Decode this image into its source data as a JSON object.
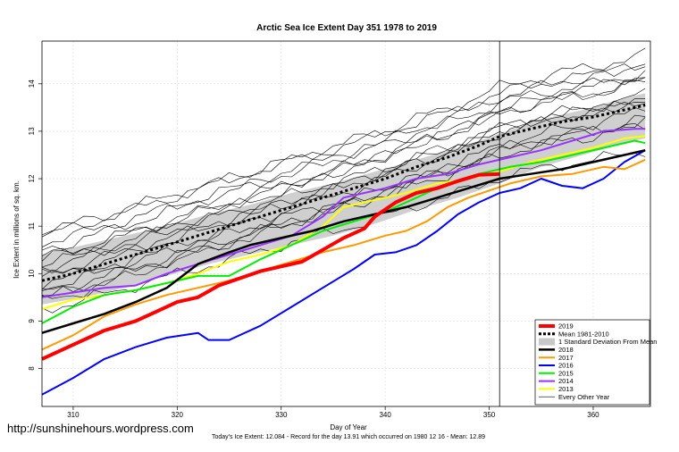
{
  "chart_data": {
    "type": "line",
    "title": "Arctic Sea Ice Extent Day 351 1978 to 2019",
    "xlabel": "Day of Year",
    "ylabel": "Ice Extent in millions of sq. km.",
    "xlim": [
      307,
      365.5
    ],
    "ylim": [
      7.2,
      14.9
    ],
    "x_ticks": [
      310,
      320,
      330,
      340,
      350,
      360
    ],
    "y_ticks": [
      8,
      9,
      10,
      11,
      12,
      13,
      14
    ],
    "grid": true,
    "marker_day": 351,
    "legend_position": "bottom-right",
    "footer": "Today's Ice Extent: 12.084  - Record for the day  13.91 which occurred on 1980 12 16  - Mean: 12.89",
    "watermark": "http://sunshinehours.wordpress.com",
    "legend": [
      {
        "label": "2019",
        "color": "#ff0000",
        "style": "solid",
        "width": 4
      },
      {
        "label": "Mean 1981-2010",
        "color": "#000000",
        "style": "dashed",
        "width": 3
      },
      {
        "label": "1 Standard Deviation From Mean",
        "color": "#c8c8c8",
        "style": "band",
        "width": 8
      },
      {
        "label": "2018",
        "color": "#000000",
        "style": "solid",
        "width": 2.5
      },
      {
        "label": "2017",
        "color": "#ff9900",
        "style": "solid",
        "width": 2
      },
      {
        "label": "2016",
        "color": "#0000ff",
        "style": "solid",
        "width": 2
      },
      {
        "label": "2015",
        "color": "#00ee00",
        "style": "solid",
        "width": 2
      },
      {
        "label": "2014",
        "color": "#9933ff",
        "style": "solid",
        "width": 2
      },
      {
        "label": "2013",
        "color": "#ffff00",
        "style": "solid",
        "width": 2
      },
      {
        "label": "Every Other Year",
        "color": "#000000",
        "style": "solid",
        "width": 0.7
      }
    ],
    "series": [
      {
        "name": "2019",
        "color": "#ff0000",
        "width": 4,
        "points": [
          [
            307,
            8.2
          ],
          [
            310,
            8.5
          ],
          [
            313,
            8.8
          ],
          [
            316,
            9.0
          ],
          [
            318,
            9.2
          ],
          [
            320,
            9.4
          ],
          [
            322,
            9.5
          ],
          [
            324,
            9.75
          ],
          [
            326,
            9.9
          ],
          [
            328,
            10.05
          ],
          [
            330,
            10.15
          ],
          [
            332,
            10.25
          ],
          [
            334,
            10.5
          ],
          [
            336,
            10.75
          ],
          [
            338,
            10.95
          ],
          [
            339,
            11.2
          ],
          [
            341,
            11.5
          ],
          [
            343,
            11.7
          ],
          [
            345,
            11.8
          ],
          [
            347,
            11.95
          ],
          [
            349,
            12.08
          ],
          [
            351,
            12.1
          ]
        ]
      },
      {
        "name": "Mean 1981-2010",
        "color": "#000000",
        "width": 3,
        "dashed": true,
        "points": [
          [
            307,
            9.85
          ],
          [
            310,
            10.0
          ],
          [
            313,
            10.2
          ],
          [
            316,
            10.4
          ],
          [
            319,
            10.6
          ],
          [
            322,
            10.8
          ],
          [
            325,
            11.0
          ],
          [
            328,
            11.2
          ],
          [
            331,
            11.4
          ],
          [
            334,
            11.6
          ],
          [
            337,
            11.8
          ],
          [
            340,
            12.0
          ],
          [
            343,
            12.25
          ],
          [
            346,
            12.45
          ],
          [
            349,
            12.7
          ],
          [
            351,
            12.89
          ],
          [
            354,
            13.05
          ],
          [
            357,
            13.2
          ],
          [
            360,
            13.3
          ],
          [
            363,
            13.45
          ],
          [
            365,
            13.55
          ]
        ]
      },
      {
        "name": "2018",
        "color": "#000000",
        "width": 2.5,
        "points": [
          [
            307,
            8.75
          ],
          [
            310,
            8.95
          ],
          [
            313,
            9.15
          ],
          [
            316,
            9.4
          ],
          [
            319,
            9.7
          ],
          [
            322,
            10.2
          ],
          [
            325,
            10.45
          ],
          [
            327,
            10.6
          ],
          [
            330,
            10.75
          ],
          [
            333,
            10.9
          ],
          [
            336,
            11.1
          ],
          [
            339,
            11.25
          ],
          [
            342,
            11.4
          ],
          [
            345,
            11.6
          ],
          [
            348,
            11.8
          ],
          [
            351,
            12.0
          ],
          [
            354,
            12.1
          ],
          [
            357,
            12.2
          ],
          [
            360,
            12.35
          ],
          [
            363,
            12.5
          ],
          [
            365,
            12.6
          ]
        ]
      },
      {
        "name": "2017",
        "color": "#ff9900",
        "width": 2,
        "points": [
          [
            307,
            8.4
          ],
          [
            310,
            8.7
          ],
          [
            313,
            9.1
          ],
          [
            316,
            9.35
          ],
          [
            319,
            9.55
          ],
          [
            322,
            9.7
          ],
          [
            325,
            9.85
          ],
          [
            328,
            10.05
          ],
          [
            331,
            10.25
          ],
          [
            334,
            10.45
          ],
          [
            337,
            10.6
          ],
          [
            340,
            10.8
          ],
          [
            342,
            10.9
          ],
          [
            344,
            11.1
          ],
          [
            346,
            11.4
          ],
          [
            348,
            11.6
          ],
          [
            350,
            11.75
          ],
          [
            352,
            11.9
          ],
          [
            355,
            12.05
          ],
          [
            358,
            12.1
          ],
          [
            361,
            12.25
          ],
          [
            363,
            12.2
          ],
          [
            365,
            12.4
          ]
        ]
      },
      {
        "name": "2016",
        "color": "#0000ff",
        "width": 2,
        "points": [
          [
            307,
            7.45
          ],
          [
            310,
            7.8
          ],
          [
            313,
            8.2
          ],
          [
            316,
            8.45
          ],
          [
            319,
            8.65
          ],
          [
            322,
            8.75
          ],
          [
            323,
            8.6
          ],
          [
            325,
            8.6
          ],
          [
            328,
            8.9
          ],
          [
            331,
            9.3
          ],
          [
            334,
            9.7
          ],
          [
            337,
            10.1
          ],
          [
            339,
            10.4
          ],
          [
            341,
            10.45
          ],
          [
            343,
            10.6
          ],
          [
            345,
            10.9
          ],
          [
            347,
            11.25
          ],
          [
            349,
            11.5
          ],
          [
            351,
            11.7
          ],
          [
            353,
            11.8
          ],
          [
            355,
            12.0
          ],
          [
            357,
            11.85
          ],
          [
            359,
            11.8
          ],
          [
            361,
            12.0
          ],
          [
            363,
            12.35
          ],
          [
            365,
            12.6
          ]
        ]
      },
      {
        "name": "2015",
        "color": "#00ee00",
        "width": 2,
        "points": [
          [
            307,
            8.95
          ],
          [
            310,
            9.3
          ],
          [
            313,
            9.55
          ],
          [
            316,
            9.65
          ],
          [
            319,
            9.8
          ],
          [
            322,
            9.95
          ],
          [
            325,
            9.95
          ],
          [
            328,
            10.3
          ],
          [
            331,
            10.6
          ],
          [
            334,
            10.9
          ],
          [
            337,
            11.1
          ],
          [
            340,
            11.3
          ],
          [
            343,
            11.6
          ],
          [
            346,
            11.9
          ],
          [
            349,
            12.1
          ],
          [
            352,
            12.25
          ],
          [
            355,
            12.35
          ],
          [
            358,
            12.5
          ],
          [
            361,
            12.65
          ],
          [
            364,
            12.8
          ],
          [
            365,
            12.75
          ]
        ]
      },
      {
        "name": "2014",
        "color": "#9933ff",
        "width": 2,
        "points": [
          [
            307,
            9.5
          ],
          [
            310,
            9.6
          ],
          [
            313,
            9.7
          ],
          [
            316,
            9.75
          ],
          [
            319,
            10.0
          ],
          [
            322,
            10.2
          ],
          [
            325,
            10.4
          ],
          [
            328,
            10.6
          ],
          [
            331,
            10.8
          ],
          [
            334,
            11.2
          ],
          [
            336,
            11.6
          ],
          [
            338,
            11.7
          ],
          [
            340,
            11.8
          ],
          [
            343,
            12.0
          ],
          [
            346,
            12.1
          ],
          [
            349,
            12.3
          ],
          [
            352,
            12.45
          ],
          [
            355,
            12.6
          ],
          [
            358,
            12.8
          ],
          [
            361,
            13.0
          ],
          [
            364,
            13.05
          ],
          [
            365,
            13.05
          ]
        ]
      },
      {
        "name": "2013",
        "color": "#ffff00",
        "width": 2,
        "points": [
          [
            307,
            9.25
          ],
          [
            310,
            9.45
          ],
          [
            313,
            9.55
          ],
          [
            316,
            9.65
          ],
          [
            319,
            9.8
          ],
          [
            322,
            10.0
          ],
          [
            325,
            10.25
          ],
          [
            328,
            10.4
          ],
          [
            331,
            10.6
          ],
          [
            334,
            11.0
          ],
          [
            336,
            11.4
          ],
          [
            339,
            11.55
          ],
          [
            342,
            11.7
          ],
          [
            345,
            11.9
          ],
          [
            348,
            12.0
          ],
          [
            351,
            12.15
          ],
          [
            354,
            12.35
          ],
          [
            357,
            12.5
          ],
          [
            360,
            12.65
          ],
          [
            363,
            12.85
          ],
          [
            365,
            12.9
          ]
        ]
      }
    ],
    "std_band": {
      "x": [
        307,
        311,
        315,
        319,
        323,
        327,
        331,
        335,
        339,
        343,
        347,
        351,
        355,
        359,
        363,
        365
      ],
      "upper": [
        10.4,
        10.6,
        10.8,
        11.0,
        11.25,
        11.45,
        11.7,
        11.9,
        12.15,
        12.4,
        12.65,
        12.95,
        13.25,
        13.45,
        13.7,
        13.8
      ],
      "lower": [
        9.35,
        9.5,
        9.7,
        9.95,
        10.2,
        10.4,
        10.6,
        10.8,
        11.05,
        11.35,
        11.6,
        11.9,
        12.25,
        12.5,
        12.75,
        12.85
      ]
    },
    "other_years": {
      "offsets": [
        -0.35,
        -0.25,
        -0.15,
        -0.05,
        0.05,
        0.15,
        0.25,
        0.35,
        0.5,
        0.65,
        0.8,
        0.95,
        -0.45,
        -0.6,
        1.05,
        0.45
      ],
      "slopes": [
        0.064,
        0.06,
        0.068,
        0.058,
        0.066,
        0.062,
        0.07,
        0.059,
        0.063,
        0.067,
        0.061,
        0.065,
        0.069,
        0.057,
        0.06,
        0.064
      ]
    }
  }
}
